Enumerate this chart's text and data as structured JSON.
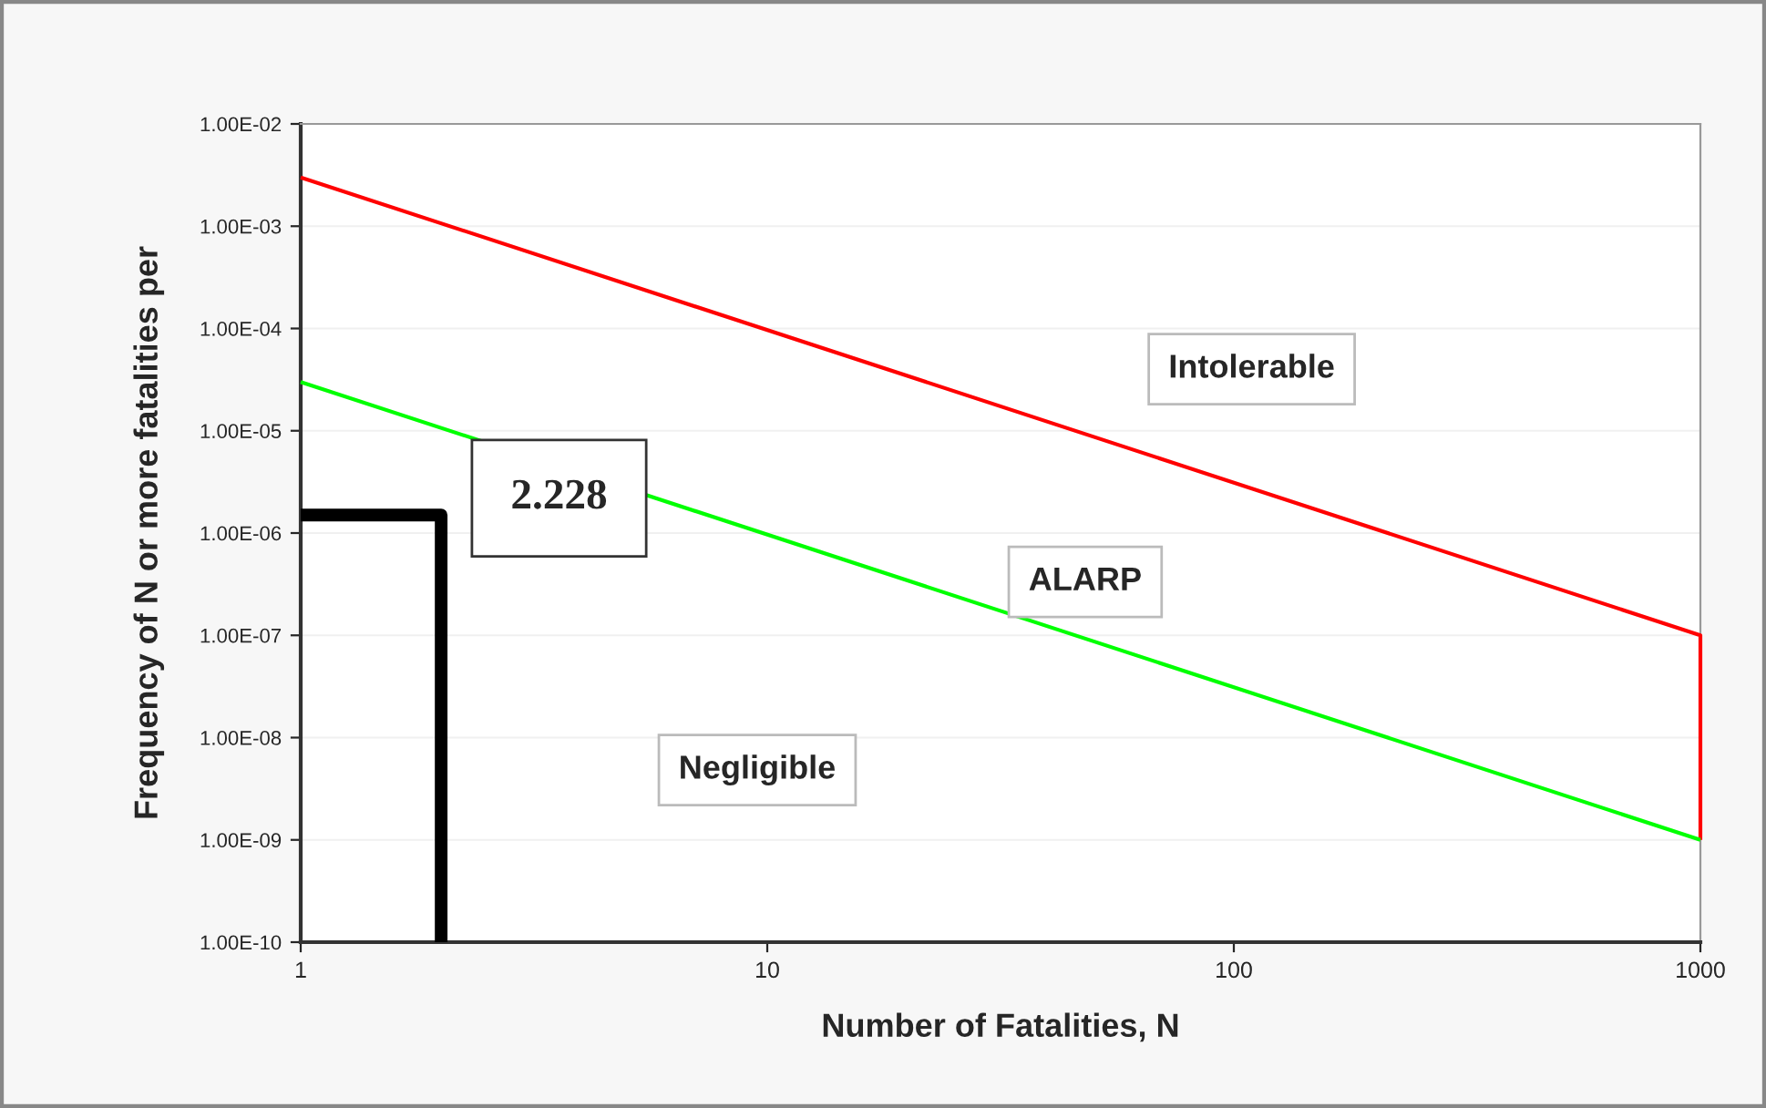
{
  "chart_data": {
    "type": "line",
    "xlabel": "Number of Fatalities, N",
    "ylabel": "Frequency of N or more fatalities per",
    "log": "xy",
    "xlim": [
      1,
      1000
    ],
    "ylim": [
      1e-10,
      0.01
    ],
    "xticks": [
      1,
      10,
      100,
      1000
    ],
    "yticks": [
      {
        "value": 1e-10,
        "label": "1.00E-10"
      },
      {
        "value": 1e-09,
        "label": "1.00E-09"
      },
      {
        "value": 1e-08,
        "label": "1.00E-08"
      },
      {
        "value": 1e-07,
        "label": "1.00E-07"
      },
      {
        "value": 1e-06,
        "label": "1.00E-06"
      },
      {
        "value": 1e-05,
        "label": "1.00E-05"
      },
      {
        "value": 0.0001,
        "label": "1.00E-04"
      },
      {
        "value": 0.001,
        "label": "1.00E-03"
      },
      {
        "value": 0.01,
        "label": "1.00E-02"
      }
    ],
    "grid": "y",
    "line_style": "solid",
    "marker": "none",
    "series": [
      {
        "color": "#ff0000",
        "x": [
          1,
          1000,
          1000
        ],
        "values": [
          0.003,
          1e-07,
          1e-09
        ]
      },
      {
        "color": "#00ff00",
        "x": [
          1,
          1000
        ],
        "values": [
          3e-05,
          1e-09
        ]
      },
      {
        "color": "#000000",
        "x": [
          1,
          2,
          2
        ],
        "values": [
          1.5e-06,
          1.5e-06,
          1e-10
        ]
      }
    ],
    "annotations": [
      "2.228",
      "Intolerable",
      "ALARP",
      "Negligible"
    ]
  }
}
